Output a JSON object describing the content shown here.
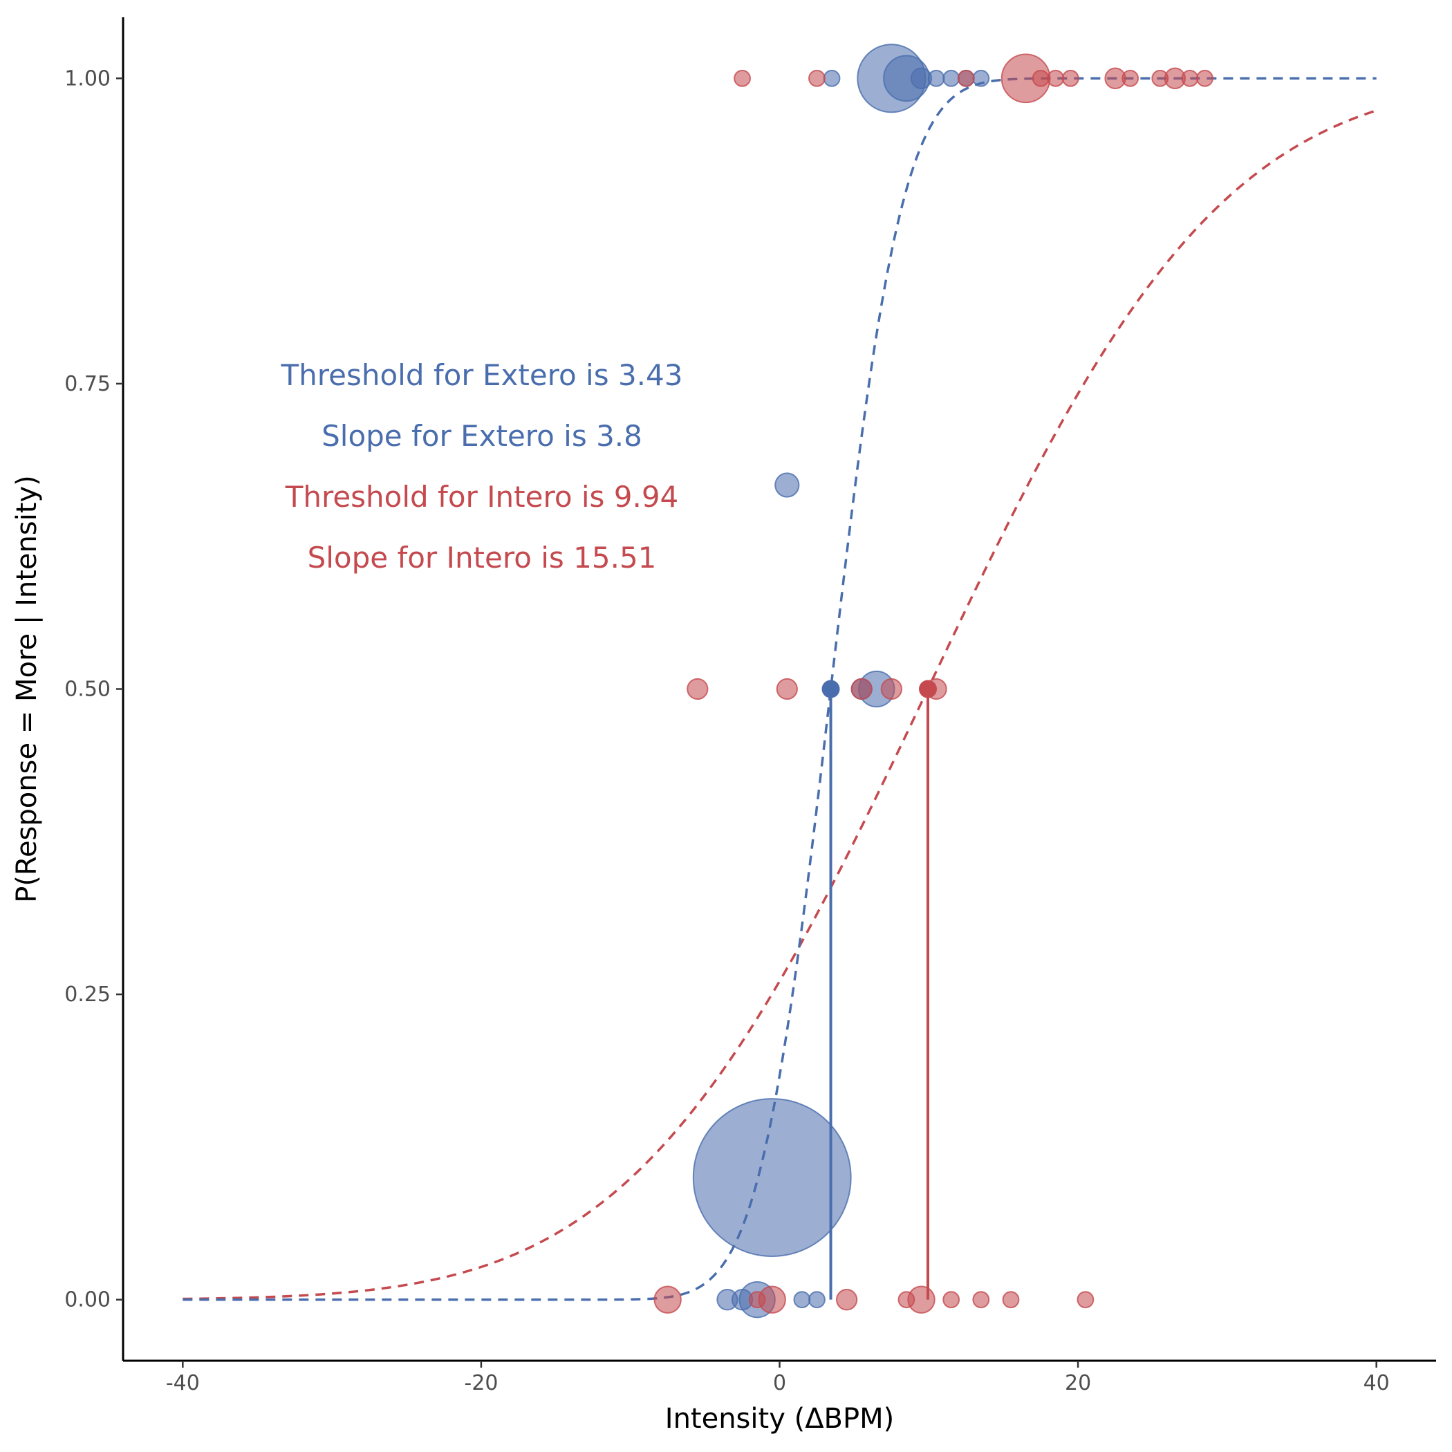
{
  "chart_data": {
    "type": "scatter",
    "xlabel": "Intensity  (ΔBPM)",
    "ylabel": "P(Response = More | Intensity)",
    "xlim": [
      -44,
      44
    ],
    "ylim": [
      -0.05,
      1.05
    ],
    "x_ticks": [
      -40,
      -20,
      0,
      20,
      40
    ],
    "x_tick_labels": [
      "-40",
      "-20",
      "0",
      "20",
      "40"
    ],
    "y_ticks": [
      0,
      0.25,
      0.5,
      0.75,
      1.0
    ],
    "y_tick_labels": [
      "0.00",
      "0.25",
      "0.50",
      "0.75",
      "1.00"
    ],
    "grid": false,
    "colors": {
      "extero": "#4a6ead",
      "intero": "#c44a4f"
    },
    "annotations": [
      {
        "text": "Threshold for  Extero is 3.43",
        "series": "extero"
      },
      {
        "text": "Slope for  Extero is 3.8",
        "series": "extero"
      },
      {
        "text": "Threshold for  Intero is 9.94",
        "series": "intero"
      },
      {
        "text": "Slope for  Intero is 15.51",
        "series": "intero"
      }
    ],
    "series": [
      {
        "key": "extero",
        "threshold": 3.43,
        "slope": 3.8,
        "curve_x": [
          -40,
          40
        ],
        "points": [
          {
            "x": 3.5,
            "y": 1.0,
            "n": 1
          },
          {
            "x": 7.5,
            "y": 1.0,
            "n": 34
          },
          {
            "x": 8.5,
            "y": 1.0,
            "n": 14
          },
          {
            "x": 9.5,
            "y": 1.0,
            "n": 2
          },
          {
            "x": 10.5,
            "y": 1.0,
            "n": 1
          },
          {
            "x": 11.5,
            "y": 1.0,
            "n": 1
          },
          {
            "x": 12.5,
            "y": 1.0,
            "n": 1
          },
          {
            "x": 13.5,
            "y": 1.0,
            "n": 1
          },
          {
            "x": 0.5,
            "y": 0.667,
            "n": 3
          },
          {
            "x": 6.5,
            "y": 0.5,
            "n": 8
          },
          {
            "x": 5.5,
            "y": 0.5,
            "n": 2
          },
          {
            "x": -0.5,
            "y": 0.1,
            "n": 200
          },
          {
            "x": -1.5,
            "y": 0.0,
            "n": 8
          },
          {
            "x": -2.5,
            "y": 0.0,
            "n": 2
          },
          {
            "x": -3.5,
            "y": 0.0,
            "n": 2
          },
          {
            "x": 1.5,
            "y": 0.0,
            "n": 1
          },
          {
            "x": 2.5,
            "y": 0.0,
            "n": 1
          }
        ]
      },
      {
        "key": "intero",
        "threshold": 9.94,
        "slope": 15.51,
        "curve_x": [
          -40,
          40
        ],
        "points": [
          {
            "x": -2.5,
            "y": 1.0,
            "n": 1
          },
          {
            "x": 2.5,
            "y": 1.0,
            "n": 1
          },
          {
            "x": 12.5,
            "y": 1.0,
            "n": 1
          },
          {
            "x": 16.5,
            "y": 1.0,
            "n": 16
          },
          {
            "x": 17.5,
            "y": 1.0,
            "n": 1
          },
          {
            "x": 18.5,
            "y": 1.0,
            "n": 1
          },
          {
            "x": 19.5,
            "y": 1.0,
            "n": 1
          },
          {
            "x": 22.5,
            "y": 1.0,
            "n": 2
          },
          {
            "x": 23.5,
            "y": 1.0,
            "n": 1
          },
          {
            "x": 25.5,
            "y": 1.0,
            "n": 1
          },
          {
            "x": 26.5,
            "y": 1.0,
            "n": 2
          },
          {
            "x": 27.5,
            "y": 1.0,
            "n": 1
          },
          {
            "x": 28.5,
            "y": 1.0,
            "n": 1
          },
          {
            "x": -5.5,
            "y": 0.5,
            "n": 2
          },
          {
            "x": 0.5,
            "y": 0.5,
            "n": 2
          },
          {
            "x": 5.5,
            "y": 0.5,
            "n": 2
          },
          {
            "x": 7.5,
            "y": 0.5,
            "n": 2
          },
          {
            "x": 10.5,
            "y": 0.5,
            "n": 2
          },
          {
            "x": -7.5,
            "y": 0.0,
            "n": 4
          },
          {
            "x": -1.5,
            "y": 0.0,
            "n": 1
          },
          {
            "x": -0.5,
            "y": 0.0,
            "n": 4
          },
          {
            "x": 4.5,
            "y": 0.0,
            "n": 2
          },
          {
            "x": 8.5,
            "y": 0.0,
            "n": 1
          },
          {
            "x": 9.5,
            "y": 0.0,
            "n": 4
          },
          {
            "x": 11.5,
            "y": 0.0,
            "n": 1
          },
          {
            "x": 13.5,
            "y": 0.0,
            "n": 1
          },
          {
            "x": 15.5,
            "y": 0.0,
            "n": 1
          },
          {
            "x": 20.5,
            "y": 0.0,
            "n": 1
          }
        ]
      }
    ]
  }
}
